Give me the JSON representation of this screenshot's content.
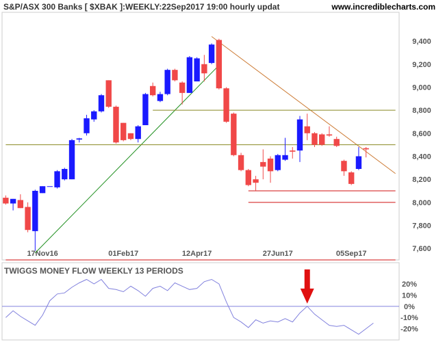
{
  "header": {
    "title": "S&P/ASX 300 Banks [ $XBAK ]:WEEKLY:22Sep2017 19:00 hourly updat",
    "site": "www.incrediblecharts.com"
  },
  "colors": {
    "up": "#1a1aff",
    "down": "#f04848",
    "wick": "#333333",
    "support_line": "#d01010",
    "resistance_line": "#888820",
    "downtrend_line": "#cc7a33",
    "uptrend_line": "#209020",
    "indicator_line": "#8080dd",
    "arrow": "#e01010",
    "grid_label": "#555555"
  },
  "chart_data": [
    {
      "type": "candlestick",
      "title": "S&P/ASX 300 Banks [ $XBAK ]:WEEKLY:22Sep2017 19:00 hourly updat",
      "x_ticks": [
        "17Nov16",
        "01Feb17",
        "12Apr17",
        "27Jun17",
        "05Sep17"
      ],
      "x_tick_index": [
        5,
        16,
        26,
        37,
        47
      ],
      "y_ticks": [
        "7,600",
        "7,800",
        "8,000",
        "8,200",
        "8,400",
        "8,600",
        "8,800",
        "9,000",
        "9,200",
        "9,400"
      ],
      "y_tick_values": [
        7600,
        7800,
        8000,
        8200,
        8400,
        8600,
        8800,
        9000,
        9200,
        9400
      ],
      "ylim": [
        7500,
        9650
      ],
      "n_slots": 54,
      "candles": [
        {
          "i": 0,
          "o": 8040,
          "h": 8060,
          "l": 7980,
          "c": 7990
        },
        {
          "i": 1,
          "o": 7990,
          "h": 8030,
          "l": 7930,
          "c": 8030
        },
        {
          "i": 2,
          "o": 8020,
          "h": 8070,
          "l": 7950,
          "c": 7950
        },
        {
          "i": 3,
          "o": 7960,
          "h": 8000,
          "l": 7740,
          "c": 7760
        },
        {
          "i": 4,
          "o": 7750,
          "h": 8110,
          "l": 7580,
          "c": 8100
        },
        {
          "i": 5,
          "o": 8080,
          "h": 8140,
          "l": 8080,
          "c": 8140
        },
        {
          "i": 6,
          "o": 8140,
          "h": 8140,
          "l": 8140,
          "c": 8140
        },
        {
          "i": 7,
          "o": 8130,
          "h": 8280,
          "l": 8120,
          "c": 8270
        },
        {
          "i": 8,
          "o": 8200,
          "h": 8300,
          "l": 8190,
          "c": 8290
        },
        {
          "i": 9,
          "o": 8200,
          "h": 8550,
          "l": 8200,
          "c": 8540
        },
        {
          "i": 10,
          "o": 8545,
          "h": 8560,
          "l": 8520,
          "c": 8555
        },
        {
          "i": 11,
          "o": 8600,
          "h": 8760,
          "l": 8580,
          "c": 8730
        },
        {
          "i": 12,
          "o": 8720,
          "h": 8800,
          "l": 8700,
          "c": 8790
        },
        {
          "i": 13,
          "o": 8790,
          "h": 8940,
          "l": 8780,
          "c": 8930
        },
        {
          "i": 14,
          "o": 9060,
          "h": 9060,
          "l": 8820,
          "c": 8830
        },
        {
          "i": 15,
          "o": 8830,
          "h": 8840,
          "l": 8510,
          "c": 8520
        },
        {
          "i": 16,
          "o": 8690,
          "h": 8690,
          "l": 8530,
          "c": 8540
        },
        {
          "i": 17,
          "o": 8600,
          "h": 8600,
          "l": 8540,
          "c": 8550
        },
        {
          "i": 18,
          "o": 8550,
          "h": 8670,
          "l": 8520,
          "c": 8660
        },
        {
          "i": 19,
          "o": 8670,
          "h": 8950,
          "l": 8670,
          "c": 8940
        },
        {
          "i": 20,
          "o": 9010,
          "h": 9040,
          "l": 8920,
          "c": 8930
        },
        {
          "i": 21,
          "o": 8880,
          "h": 8960,
          "l": 8870,
          "c": 8940
        },
        {
          "i": 22,
          "o": 8940,
          "h": 9160,
          "l": 8930,
          "c": 9150
        },
        {
          "i": 23,
          "o": 9150,
          "h": 9160,
          "l": 9050,
          "c": 9060
        },
        {
          "i": 24,
          "o": 9040,
          "h": 9050,
          "l": 8850,
          "c": 8950
        },
        {
          "i": 25,
          "o": 8950,
          "h": 9270,
          "l": 8950,
          "c": 9260
        },
        {
          "i": 26,
          "o": 9050,
          "h": 9260,
          "l": 9050,
          "c": 9250
        },
        {
          "i": 27,
          "o": 9200,
          "h": 9280,
          "l": 9050,
          "c": 9120
        },
        {
          "i": 28,
          "o": 9210,
          "h": 9380,
          "l": 9200,
          "c": 9370
        },
        {
          "i": 29,
          "o": 9410,
          "h": 9420,
          "l": 8980,
          "c": 8990
        },
        {
          "i": 30,
          "o": 8990,
          "h": 9000,
          "l": 8690,
          "c": 8700
        },
        {
          "i": 31,
          "o": 8770,
          "h": 8780,
          "l": 8400,
          "c": 8410
        },
        {
          "i": 32,
          "o": 8410,
          "h": 8430,
          "l": 8270,
          "c": 8280
        },
        {
          "i": 33,
          "o": 8280,
          "h": 8290,
          "l": 8140,
          "c": 8150
        },
        {
          "i": 34,
          "o": 8200,
          "h": 8230,
          "l": 8100,
          "c": 8170
        },
        {
          "i": 35,
          "o": 8350,
          "h": 8460,
          "l": 8200,
          "c": 8310
        },
        {
          "i": 36,
          "o": 8380,
          "h": 8400,
          "l": 8170,
          "c": 8270
        },
        {
          "i": 37,
          "o": 8280,
          "h": 8420,
          "l": 8270,
          "c": 8410
        },
        {
          "i": 38,
          "o": 8370,
          "h": 8560,
          "l": 8360,
          "c": 8410
        },
        {
          "i": 39,
          "o": 8450,
          "h": 8480,
          "l": 8380,
          "c": 8440
        },
        {
          "i": 40,
          "o": 8450,
          "h": 8750,
          "l": 8350,
          "c": 8720
        },
        {
          "i": 41,
          "o": 8660,
          "h": 8770,
          "l": 8540,
          "c": 8600
        },
        {
          "i": 42,
          "o": 8600,
          "h": 8610,
          "l": 8480,
          "c": 8500
        },
        {
          "i": 43,
          "o": 8590,
          "h": 8600,
          "l": 8490,
          "c": 8500
        },
        {
          "i": 44,
          "o": 8590,
          "h": 8660,
          "l": 8570,
          "c": 8580
        },
        {
          "i": 45,
          "o": 8550,
          "h": 8570,
          "l": 8480,
          "c": 8490
        },
        {
          "i": 46,
          "o": 8360,
          "h": 8370,
          "l": 8230,
          "c": 8270
        },
        {
          "i": 47,
          "o": 8260,
          "h": 8270,
          "l": 8150,
          "c": 8160
        },
        {
          "i": 48,
          "o": 8290,
          "h": 8480,
          "l": 8280,
          "c": 8400
        },
        {
          "i": 49,
          "o": 8470,
          "h": 8480,
          "l": 8390,
          "c": 8460
        }
      ],
      "lines": [
        {
          "name": "uptrend",
          "from": {
            "i": 4,
            "v": 7560
          },
          "to": {
            "i": 29,
            "v": 9190
          },
          "color_key": "uptrend_line"
        },
        {
          "name": "downtrend",
          "from": {
            "i": 28,
            "v": 9440
          },
          "to": {
            "i": 53,
            "v": 8250
          },
          "color_key": "downtrend_line"
        },
        {
          "name": "level-8500",
          "from": {
            "i": 0,
            "v": 8500
          },
          "to": {
            "i": 53,
            "v": 8500
          },
          "color_key": "resistance_line"
        },
        {
          "name": "level-8800",
          "from": {
            "i": 20,
            "v": 8800
          },
          "to": {
            "i": 53,
            "v": 8800
          },
          "color_key": "resistance_line"
        },
        {
          "name": "level-8100",
          "from": {
            "i": 33,
            "v": 8100
          },
          "to": {
            "i": 53,
            "v": 8100
          },
          "color_key": "support_line"
        },
        {
          "name": "level-8000",
          "from": {
            "i": 33,
            "v": 8000
          },
          "to": {
            "i": 53,
            "v": 8000
          },
          "color_key": "support_line"
        },
        {
          "name": "level-7500",
          "from": {
            "i": 0,
            "v": 7500
          },
          "to": {
            "i": 53,
            "v": 7500
          },
          "color_key": "support_line"
        }
      ]
    },
    {
      "type": "line",
      "title": "TWIGGS MONEY FLOW WEEKLY 13 PERIODS",
      "y_ticks": [
        "20%",
        "10%",
        "0%",
        "-10%",
        "-20%"
      ],
      "y_tick_values": [
        20,
        10,
        0,
        -10,
        -20
      ],
      "ylim": [
        -27,
        28
      ],
      "zero_line": 0,
      "n_slots": 54,
      "values": [
        -10,
        -4,
        -9,
        -13,
        -17,
        -8,
        5,
        11,
        12,
        17,
        21,
        24,
        20,
        24,
        16,
        15,
        13,
        18,
        14,
        9,
        16,
        18,
        14,
        21,
        18,
        15,
        16,
        22,
        24,
        20,
        4,
        -10,
        -14,
        -19,
        -12,
        -15,
        -13,
        -14,
        -11,
        -14,
        -6,
        0,
        -7,
        -12,
        -17,
        -18,
        -17,
        -21,
        -25,
        -20,
        -15
      ],
      "marker": {
        "type": "arrow-down",
        "i": 41
      }
    }
  ]
}
